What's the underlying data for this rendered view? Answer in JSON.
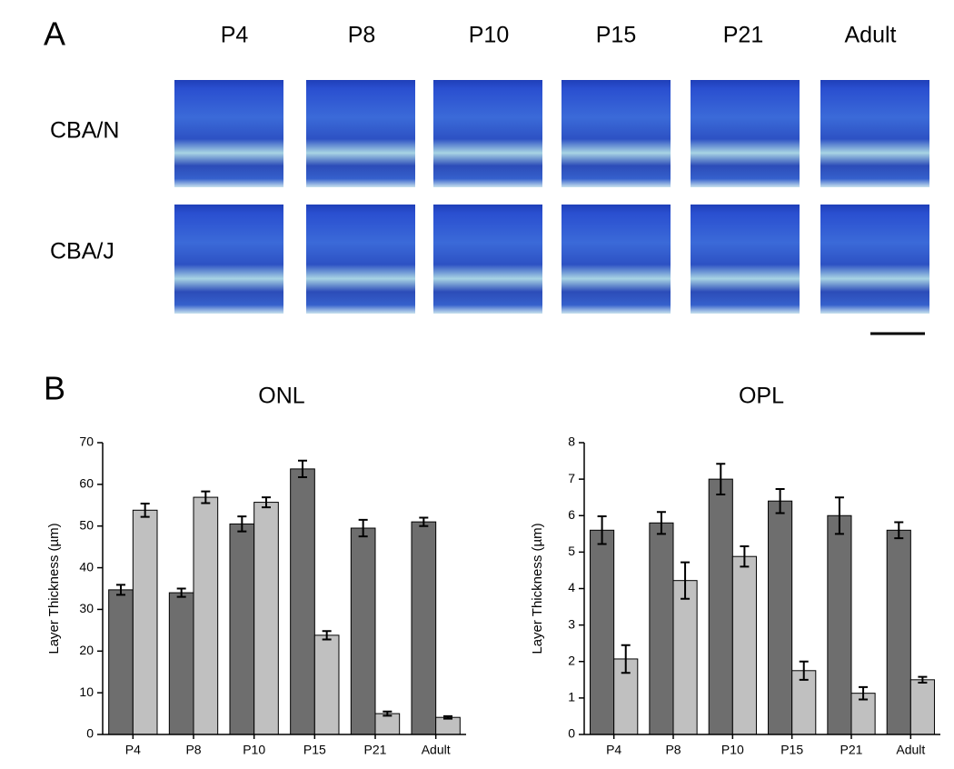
{
  "panel_a": {
    "label": "A",
    "columns": [
      "P4",
      "P8",
      "P10",
      "P15",
      "P21",
      "Adult"
    ],
    "rows": [
      "CBA/N",
      "CBA/J"
    ]
  },
  "panel_b": {
    "label": "B"
  },
  "chart_data": [
    {
      "type": "bar",
      "title": "ONL",
      "y_label": "Layer Thickness (µm)",
      "categories": [
        "P4",
        "P8",
        "P10",
        "P15",
        "P21",
        "Adult"
      ],
      "series": [
        {
          "color": "#6e6e6e",
          "values": [
            34.7,
            34.0,
            50.5,
            63.7,
            49.5,
            51.0
          ],
          "errors": [
            1.2,
            1.0,
            1.8,
            2.0,
            2.0,
            1.0
          ]
        },
        {
          "color": "#c0c0c0",
          "values": [
            53.8,
            56.9,
            55.7,
            23.8,
            5.0,
            4.1
          ],
          "errors": [
            1.6,
            1.4,
            1.2,
            1.0,
            0.5,
            0.3
          ]
        }
      ],
      "ylim": [
        0,
        70
      ],
      "yticks": [
        0,
        10,
        20,
        30,
        40,
        50,
        60,
        70
      ]
    },
    {
      "type": "bar",
      "title": "OPL",
      "y_label": "Layer Thickness (µm)",
      "categories": [
        "P4",
        "P8",
        "P10",
        "P15",
        "P21",
        "Adult"
      ],
      "series": [
        {
          "color": "#6e6e6e",
          "values": [
            5.6,
            5.8,
            7.0,
            6.4,
            6.0,
            5.6
          ],
          "errors": [
            0.38,
            0.3,
            0.42,
            0.33,
            0.5,
            0.22
          ]
        },
        {
          "color": "#c0c0c0",
          "values": [
            2.07,
            4.22,
            4.88,
            1.75,
            1.13,
            1.5
          ],
          "errors": [
            0.38,
            0.5,
            0.28,
            0.25,
            0.17,
            0.08
          ]
        }
      ],
      "ylim": [
        0,
        8
      ],
      "yticks": [
        0,
        1,
        2,
        3,
        4,
        5,
        6,
        7,
        8
      ]
    }
  ]
}
